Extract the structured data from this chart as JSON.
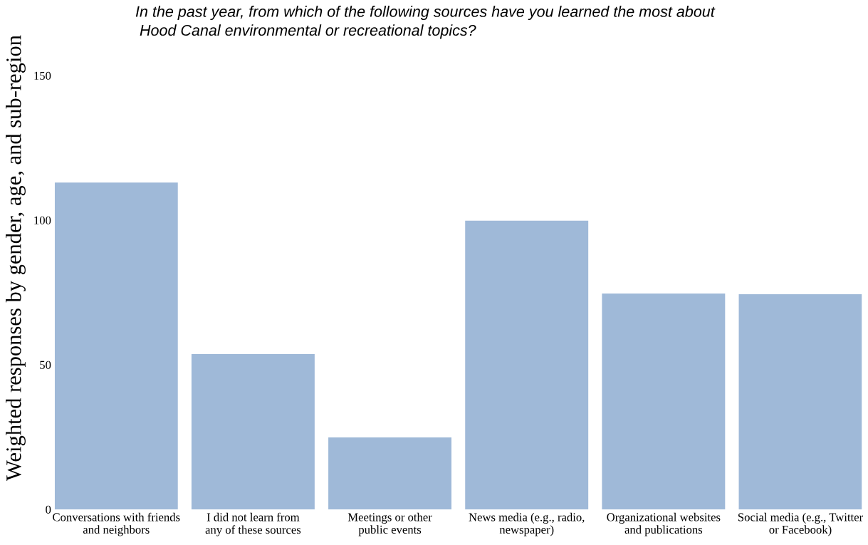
{
  "chart_data": {
    "type": "bar",
    "title": "In the past year, from which of the following sources have you learned the most about\n Hood Canal environmental or recreational topics?",
    "ylabel": "Weighted responses by gender, age, and sub-region",
    "categories": [
      "Conversations with friends\nand neighbors",
      "I did not learn from\nany of these sources",
      "Meetings or other\npublic events",
      "News media (e.g., radio,\nnewspaper)",
      "Organizational websites\nand publications",
      "Social media (e.g., Twitter\nor Facebook)"
    ],
    "values": [
      113,
      53.7,
      24.9,
      99.8,
      74.6,
      74.4
    ],
    "color": "#9fb9d8",
    "ylim": [
      0,
      150
    ],
    "yticks": [
      0,
      50,
      100,
      150
    ],
    "grid": false
  }
}
